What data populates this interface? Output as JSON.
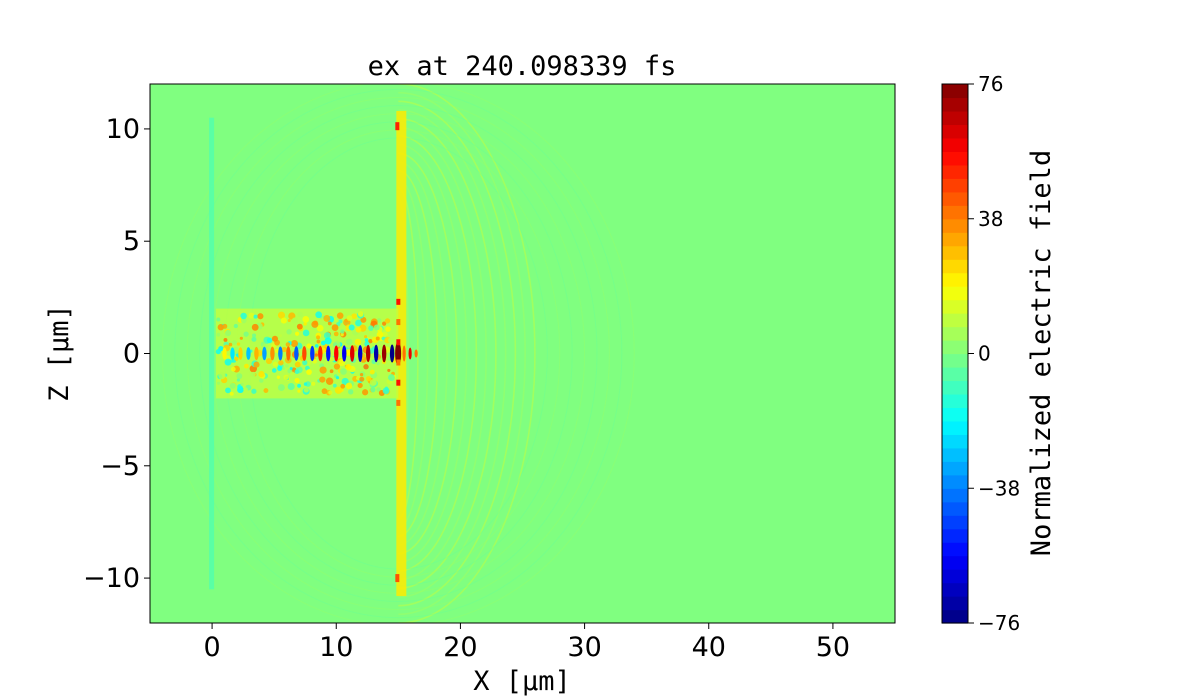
{
  "chart_data": {
    "type": "heatmap",
    "title": "ex at 240.098339 fs",
    "xlabel": "X [μm]",
    "ylabel": "Z [μm]",
    "xlim": [
      -5,
      55
    ],
    "ylim": [
      -12,
      12
    ],
    "x_ticks": [
      0,
      10,
      20,
      30,
      40,
      50
    ],
    "x_tick_labels": [
      "0",
      "10",
      "20",
      "30",
      "40",
      "50"
    ],
    "y_ticks": [
      10,
      5,
      0,
      -5,
      -10
    ],
    "y_tick_labels": [
      "10",
      "5",
      "0",
      "−5",
      "−10"
    ],
    "colormap": "jet",
    "colorbar": {
      "label": "Normalized electric field",
      "range": [
        -76,
        76
      ],
      "ticks": [
        76,
        38,
        0,
        -38,
        -76
      ],
      "tick_labels": [
        "76",
        "38",
        "0",
        "−38",
        "−76"
      ],
      "levels": 40
    },
    "background_value": 0,
    "features": {
      "target_surface_x": 15,
      "rear_edge_x": 0,
      "beam_channel_z": [
        -2,
        2
      ],
      "wavefront_max_x": 26,
      "peak_field_x": 14.5
    }
  }
}
